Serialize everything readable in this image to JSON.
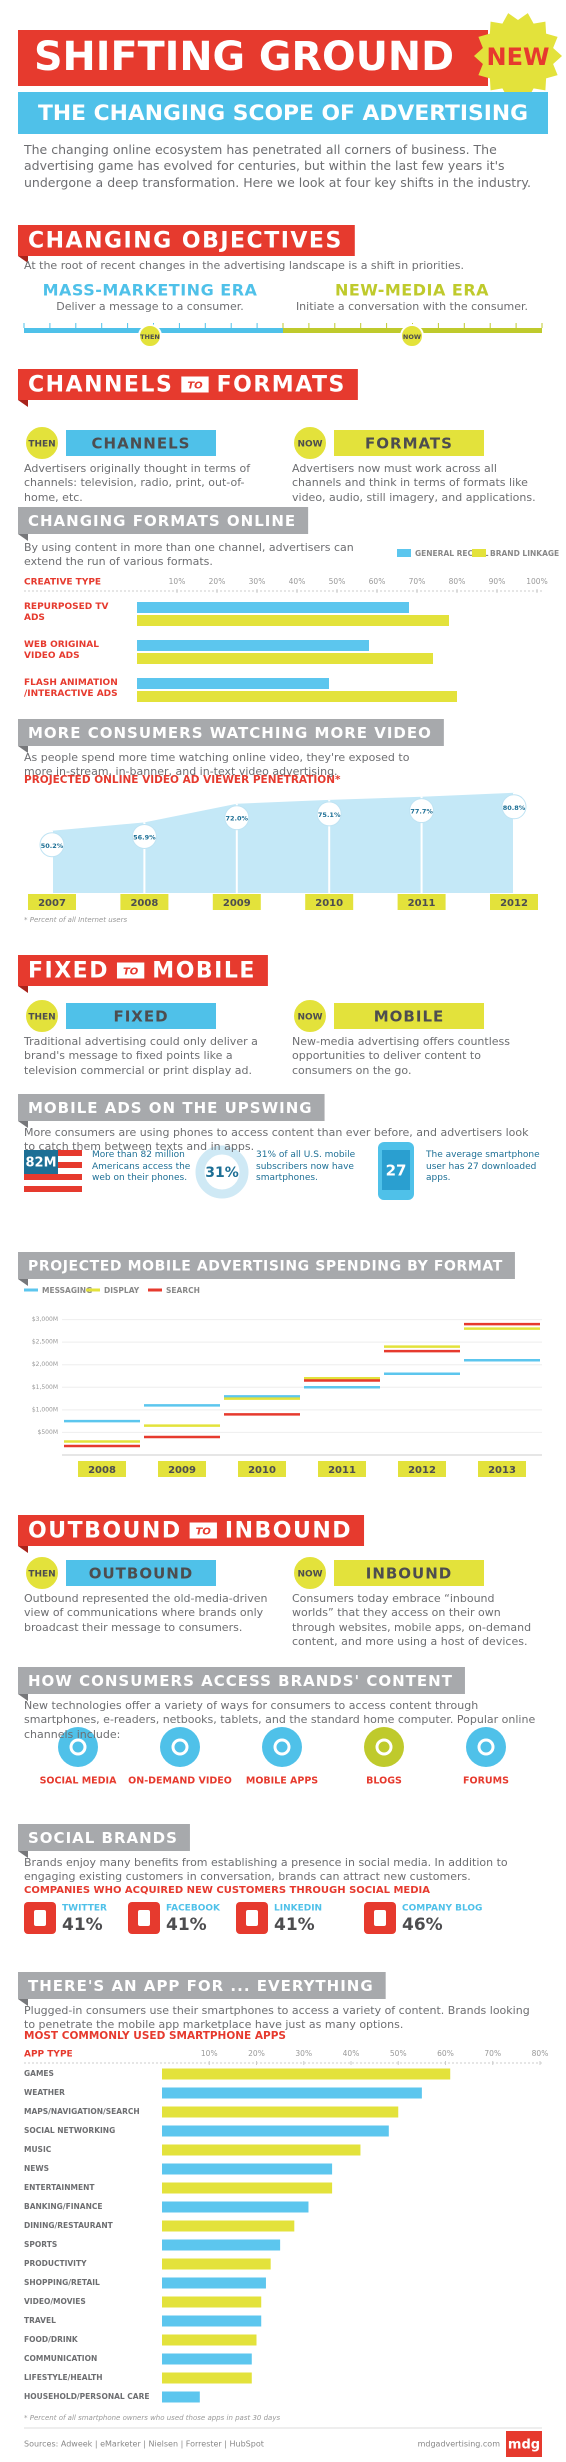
{
  "header": {
    "title": "SHIFTING GROUND",
    "badge": "NEW",
    "subtitle": "THE CHANGING SCOPE OF ADVERTISING"
  },
  "intro": "The changing online ecosystem has penetrated all corners of business. The advertising game has evolved for centuries, but within the last few years it's undergone a deep transformation. Here we look at four key shifts in the industry.",
  "objectives": {
    "title": "CHANGING OBJECTIVES",
    "text": "At the root of recent changes in the advertising landscape is a shift in priorities.",
    "then": {
      "badge": "THEN",
      "era": "MASS-MARKETING ERA",
      "text": "Deliver a message to a consumer."
    },
    "now": {
      "badge": "NOW",
      "era": "NEW-MEDIA ERA",
      "text": "Initiate a conversation with the consumer."
    }
  },
  "channels": {
    "title_from": "CHANNELS",
    "title_joiner": "TO",
    "title_to": "FORMATS",
    "then": {
      "badge": "THEN",
      "label": "CHANNELS",
      "text": "Advertisers originally thought in terms of channels: television, radio, print, out-of-home, etc."
    },
    "now": {
      "badge": "NOW",
      "label": "FORMATS",
      "text": "Advertisers now must work across all channels and think in terms of formats like video, audio, still imagery, and applications."
    }
  },
  "formats_online": {
    "title": "CHANGING FORMATS ONLINE",
    "text": "By using content in more than one channel, advertisers can extend the run of various formats."
  },
  "video": {
    "title": "MORE CONSUMERS WATCHING MORE VIDEO",
    "text": "As people spend more time watching online video, they're exposed to more in-stream, in-banner, and in-text video advertising."
  },
  "fixed_mobile": {
    "title_from": "FIXED",
    "title_joiner": "TO",
    "title_to": "MOBILE",
    "then": {
      "badge": "THEN",
      "label": "FIXED",
      "text": "Traditional advertising could only deliver a brand's message to fixed points like a television commercial or print display ad."
    },
    "now": {
      "badge": "NOW",
      "label": "MOBILE",
      "text": "New-media advertising offers countless opportunities to deliver content to consumers on the go."
    }
  },
  "upswing": {
    "title": "MOBILE ADS ON THE UPSWING",
    "text": "More consumers are using phones to access content than ever before, and advertisers look to catch them between texts and in apps.",
    "stats": [
      {
        "figure": "82M",
        "text": "More than 82 million Americans access the web on their phones."
      },
      {
        "figure": "31%",
        "text": "31% of all U.S. mobile subscribers now have smartphones."
      },
      {
        "figure": "27",
        "text": "The average smartphone user has 27 downloaded apps."
      }
    ]
  },
  "spending": {
    "title": "PROJECTED MOBILE ADVERTISING SPENDING BY FORMAT"
  },
  "outbound_inbound": {
    "title_from": "OUTBOUND",
    "title_joiner": "TO",
    "title_to": "INBOUND",
    "then": {
      "badge": "THEN",
      "label": "OUTBOUND",
      "text": "Outbound represented the old-media-driven view of communications where brands only broadcast their message to consumers."
    },
    "now": {
      "badge": "NOW",
      "label": "INBOUND",
      "text": "Consumers today embrace “inbound worlds” that they access on their own through websites, mobile apps, on-demand content, and more using a host of devices."
    }
  },
  "access": {
    "title": "HOW CONSUMERS ACCESS BRANDS' CONTENT",
    "text": "New technologies offer a variety of ways for consumers to access content through smartphones, e-readers, netbooks, tablets, and the standard home computer. Popular online channels include:",
    "channels": [
      "SOCIAL MEDIA",
      "ON-DEMAND VIDEO",
      "MOBILE APPS",
      "BLOGS",
      "FORUMS"
    ]
  },
  "social": {
    "title": "SOCIAL BRANDS",
    "text": "Brands enjoy many benefits from establishing a presence in social media. In addition to engaging existing customers in conversation, brands can attract new customers.",
    "subtitle": "COMPANIES WHO ACQUIRED NEW CUSTOMERS THROUGH SOCIAL MEDIA",
    "companies": [
      {
        "name": "TWITTER",
        "share": "41%"
      },
      {
        "name": "FACEBOOK",
        "share": "41%"
      },
      {
        "name": "LINKEDIN",
        "share": "41%"
      },
      {
        "name": "COMPANY BLOG",
        "share": "46%"
      }
    ]
  },
  "apps": {
    "title": "THERE'S AN APP FOR ... EVERYTHING",
    "text": "Plugged-in consumers use their smartphones to access a variety of content. Brands looking to penetrate the mobile app marketplace have just as many options."
  },
  "footer": {
    "sources": "Sources: Adweek | eMarketer | Nielsen | Forrester | HubSpot",
    "site": "mdgadvertising.com",
    "logo": "mdg"
  },
  "chart_data": [
    {
      "type": "bar",
      "orientation": "horizontal",
      "category_label": "CREATIVE TYPE",
      "categories": [
        "REPURPOSED TV ADS",
        "WEB ORIGINAL VIDEO ADS",
        "FLASH ANIMATION /INTERACTIVE ADS"
      ],
      "series": [
        {
          "name": "GENERAL RECALL",
          "color": "#5cc6ee",
          "values": [
            68,
            58,
            48
          ]
        },
        {
          "name": "BRAND LINKAGE",
          "color": "#e3e23b",
          "values": [
            78,
            74,
            80
          ]
        }
      ],
      "xlim": [
        0,
        100
      ],
      "xticks": [
        {
          "value": 10,
          "label": "10%"
        },
        {
          "value": 20,
          "label": "20%"
        },
        {
          "value": 30,
          "label": "30%"
        },
        {
          "value": 40,
          "label": "40%"
        },
        {
          "value": 50,
          "label": "50%"
        },
        {
          "value": 60,
          "label": "60%"
        },
        {
          "value": 70,
          "label": "70%"
        },
        {
          "value": 80,
          "label": "80%"
        },
        {
          "value": 90,
          "label": "90%"
        },
        {
          "value": 100,
          "label": "100%"
        }
      ],
      "legend": "top-right"
    },
    {
      "type": "area",
      "title": "PROJECTED ONLINE VIDEO AD VIEWER PENETRATION*",
      "categories": [
        "2007",
        "2008",
        "2009",
        "2010",
        "2011",
        "2012"
      ],
      "values": [
        50.2,
        56.9,
        72.0,
        75.1,
        77.7,
        80.8
      ],
      "value_labels": [
        "50.2%",
        "56.9%",
        "72.0%",
        "75.1%",
        "77.7%",
        "80.8%"
      ],
      "ylim": [
        0,
        100
      ],
      "color": "#c4e8f7",
      "footnote": "* Percent of all Internet users"
    },
    {
      "type": "step",
      "categories": [
        "2008",
        "2009",
        "2010",
        "2011",
        "2012",
        "2013"
      ],
      "series": [
        {
          "name": "MESSAGING",
          "color": "#5cc6ee",
          "values": [
            750,
            1100,
            1300,
            1500,
            1800,
            2100
          ]
        },
        {
          "name": "DISPLAY",
          "color": "#e3e23b",
          "values": [
            300,
            650,
            1250,
            1700,
            2400,
            2800
          ]
        },
        {
          "name": "SEARCH",
          "color": "#e63a2e",
          "values": [
            200,
            400,
            900,
            1650,
            2300,
            2900
          ]
        }
      ],
      "ylim": [
        0,
        3500
      ],
      "yticks": [
        {
          "value": 500,
          "label": "$500M"
        },
        {
          "value": 1000,
          "label": "$1,000M"
        },
        {
          "value": 1500,
          "label": "$1,500M"
        },
        {
          "value": 2000,
          "label": "$2,000M"
        },
        {
          "value": 2500,
          "label": "$2,500M"
        },
        {
          "value": 3000,
          "label": "$3,000M"
        }
      ],
      "grid": true,
      "legend": "top-left"
    },
    {
      "type": "bar",
      "orientation": "horizontal",
      "title": "MOST COMMONLY USED SMARTPHONE APPS",
      "category_label": "APP TYPE",
      "categories": [
        "GAMES",
        "WEATHER",
        "MAPS/NAVIGATION/SEARCH",
        "SOCIAL NETWORKING",
        "MUSIC",
        "NEWS",
        "ENTERTAINMENT",
        "BANKING/FINANCE",
        "DINING/RESTAURANT",
        "SPORTS",
        "PRODUCTIVITY",
        "SHOPPING/RETAIL",
        "VIDEO/MOVIES",
        "TRAVEL",
        "FOOD/DRINK",
        "COMMUNICATION",
        "LIFESTYLE/HEALTH",
        "HOUSEHOLD/PERSONAL CARE"
      ],
      "values": [
        61,
        55,
        50,
        48,
        42,
        36,
        36,
        31,
        28,
        25,
        23,
        22,
        21,
        21,
        20,
        19,
        19,
        8
      ],
      "colors": [
        "#e3e23b",
        "#5cc6ee"
      ],
      "xlim": [
        0,
        80
      ],
      "xticks": [
        {
          "value": 10,
          "label": "10%"
        },
        {
          "value": 20,
          "label": "20%"
        },
        {
          "value": 30,
          "label": "30%"
        },
        {
          "value": 40,
          "label": "40%"
        },
        {
          "value": 50,
          "label": "50%"
        },
        {
          "value": 60,
          "label": "60%"
        },
        {
          "value": 70,
          "label": "70%"
        },
        {
          "value": 80,
          "label": "80%"
        }
      ],
      "footnote": "* Percent of all smartphone owners who used those apps in past 30 days"
    }
  ]
}
